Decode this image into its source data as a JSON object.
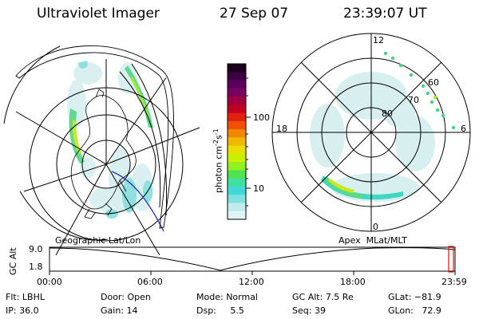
{
  "header": {
    "title": "Ultraviolet Imager",
    "date": "27 Sep 07",
    "time": "23:39:07 UT"
  },
  "colorbar": {
    "unit_label": "photon cm",
    "unit_exp1": "-2",
    "unit_mid": "s",
    "unit_exp2": "-1",
    "ticks": [
      "100",
      "10"
    ],
    "colors": [
      "#1a001a",
      "#3a0040",
      "#5c0060",
      "#7a0060",
      "#a00040",
      "#c00020",
      "#e02010",
      "#f05000",
      "#f08800",
      "#f0b800",
      "#e8e000",
      "#c8f000",
      "#90f020",
      "#50e050",
      "#40e0a0",
      "#40d8d8",
      "#80e0e0",
      "#c0ecec",
      "#e0f4f4"
    ]
  },
  "polar": {
    "lat_labels": [
      "80",
      "70",
      "60"
    ],
    "mlt_labels": [
      "12",
      "18",
      "6",
      "0"
    ]
  },
  "captions": {
    "left_map": "Geographic Lat/Lon",
    "right_map": "Apex  MLat/MLT"
  },
  "timeline": {
    "axis_label": "GC Alt",
    "y_ticks": [
      "9.0",
      "1.8"
    ],
    "x_ticks": [
      "00:00",
      "06:00",
      "12:00",
      "18:00",
      "23:59"
    ]
  },
  "info": {
    "row1": [
      {
        "key": "Flt:",
        "value": "LBHL"
      },
      {
        "key": "Door:",
        "value": "Open"
      },
      {
        "key": "Mode:",
        "value": "Normal"
      },
      {
        "key": "GC Alt:",
        "value": "7.5 Re"
      },
      {
        "key": "GLat:",
        "value": "−81.9"
      }
    ],
    "row2": [
      {
        "key": "IP:",
        "value": "36.0"
      },
      {
        "key": "Gain:",
        "value": "14"
      },
      {
        "key": "Dsp:",
        "value": "5.5"
      },
      {
        "key": "Seq:",
        "value": "39"
      },
      {
        "key": "GLon:",
        "value": "72.9"
      }
    ]
  }
}
